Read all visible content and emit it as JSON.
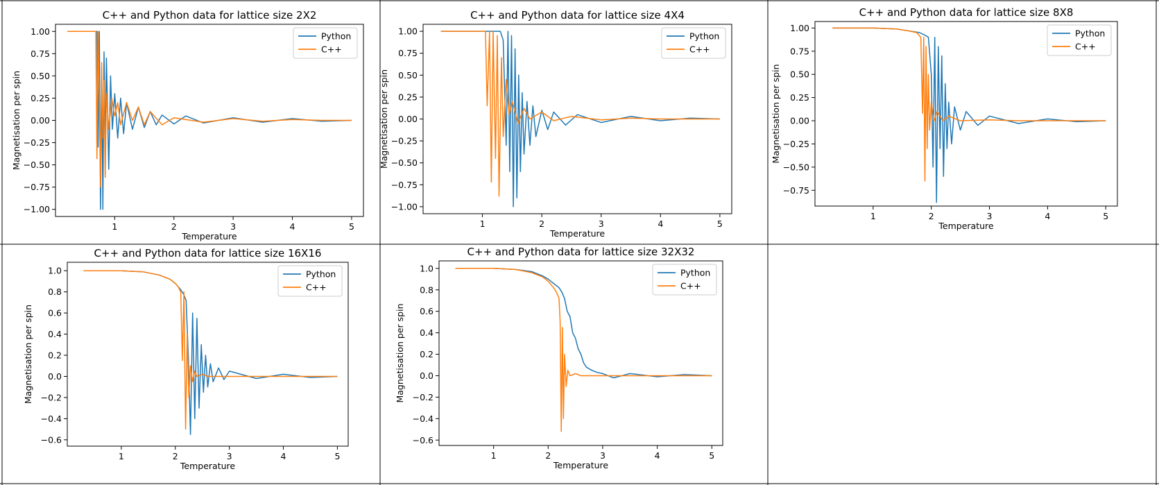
{
  "colors": {
    "python": "#1f77b4",
    "cpp": "#ff7f0e",
    "frame": "#000000",
    "grid_line": "#000000"
  },
  "chart_data": [
    {
      "type": "line",
      "title": "C++ and Python data for lattice size 2X2",
      "xlabel": "Temperature",
      "ylabel": "Magnetisation per spin",
      "xlim": [
        0.0,
        5.2
      ],
      "ylim": [
        -1.08,
        1.08
      ],
      "xticks": [
        1,
        2,
        3,
        4,
        5
      ],
      "yticks": [
        -1.0,
        -0.75,
        -0.5,
        -0.25,
        0.0,
        0.25,
        0.5,
        0.75,
        1.0
      ],
      "ytick_labels": [
        "−1.00",
        "−0.75",
        "−0.50",
        "−0.25",
        "0.00",
        "0.25",
        "0.50",
        "0.75",
        "1.00"
      ],
      "legend_position": "top-right",
      "series": [
        {
          "name": "Python",
          "x": [
            0.2,
            0.6,
            0.7,
            0.72,
            0.74,
            0.76,
            0.78,
            0.8,
            0.82,
            0.84,
            0.86,
            0.88,
            0.9,
            0.93,
            0.96,
            1.0,
            1.05,
            1.1,
            1.15,
            1.2,
            1.3,
            1.4,
            1.5,
            1.6,
            1.7,
            1.8,
            2.0,
            2.2,
            2.5,
            3.0,
            3.5,
            4.0,
            4.5,
            5.0
          ],
          "y": [
            1.0,
            1.0,
            1.0,
            -0.3,
            1.0,
            -1.0,
            0.6,
            -1.0,
            0.77,
            -0.4,
            0.7,
            0.1,
            -0.55,
            0.5,
            -0.1,
            0.3,
            -0.2,
            0.25,
            -0.15,
            0.2,
            -0.1,
            0.15,
            -0.08,
            0.1,
            -0.05,
            0.06,
            -0.04,
            0.05,
            -0.03,
            0.03,
            -0.02,
            0.02,
            -0.01,
            0.0
          ]
        },
        {
          "name": "C++",
          "x": [
            0.2,
            0.6,
            0.68,
            0.7,
            0.72,
            0.74,
            0.76,
            0.78,
            0.8,
            0.82,
            0.84,
            0.86,
            0.88,
            0.9,
            0.95,
            1.0,
            1.05,
            1.1,
            1.2,
            1.3,
            1.4,
            1.5,
            1.6,
            1.8,
            2.0,
            2.5,
            3.0,
            3.5,
            4.0,
            4.5,
            5.0
          ],
          "y": [
            1.0,
            1.0,
            1.0,
            -0.43,
            1.0,
            0.2,
            -0.75,
            0.65,
            -0.2,
            0.45,
            -0.64,
            0.3,
            0.1,
            -0.1,
            0.25,
            0.05,
            0.2,
            -0.05,
            0.2,
            0.0,
            0.15,
            -0.05,
            0.1,
            -0.05,
            0.03,
            -0.02,
            0.02,
            -0.01,
            0.01,
            0.0,
            0.0
          ]
        }
      ]
    },
    {
      "type": "line",
      "title": "C++ and Python data for lattice size 4X4",
      "xlabel": "Temperature",
      "ylabel": "Magnetisation per spin",
      "xlim": [
        0.0,
        5.2
      ],
      "ylim": [
        -1.08,
        1.08
      ],
      "xticks": [
        1,
        2,
        3,
        4,
        5
      ],
      "yticks": [
        -1.0,
        -0.75,
        -0.5,
        -0.25,
        0.0,
        0.25,
        0.5,
        0.75,
        1.0
      ],
      "ytick_labels": [
        "−1.00",
        "−0.75",
        "−0.50",
        "−0.25",
        "0.00",
        "0.25",
        "0.50",
        "0.75",
        "1.00"
      ],
      "legend_position": "top-right",
      "series": [
        {
          "name": "Python",
          "x": [
            0.3,
            1.0,
            1.3,
            1.35,
            1.4,
            1.43,
            1.46,
            1.49,
            1.52,
            1.55,
            1.58,
            1.61,
            1.64,
            1.67,
            1.7,
            1.75,
            1.8,
            1.85,
            1.9,
            2.0,
            2.1,
            2.2,
            2.4,
            2.6,
            3.0,
            3.5,
            4.0,
            4.5,
            5.0
          ],
          "y": [
            1.0,
            1.0,
            1.0,
            0.9,
            -0.3,
            1.0,
            -0.6,
            0.95,
            -1.0,
            0.8,
            -0.9,
            0.5,
            -0.6,
            0.3,
            -0.4,
            0.2,
            -0.3,
            0.15,
            -0.2,
            0.1,
            -0.12,
            0.08,
            -0.07,
            0.05,
            -0.04,
            0.03,
            -0.02,
            0.01,
            0.0
          ]
        },
        {
          "name": "C++",
          "x": [
            0.3,
            1.0,
            1.05,
            1.08,
            1.12,
            1.15,
            1.18,
            1.22,
            1.25,
            1.28,
            1.32,
            1.35,
            1.4,
            1.45,
            1.5,
            1.6,
            1.7,
            1.8,
            2.0,
            2.2,
            2.5,
            3.0,
            3.5,
            4.0,
            4.5,
            5.0
          ],
          "y": [
            1.0,
            1.0,
            1.0,
            0.15,
            1.0,
            -0.72,
            1.0,
            -0.45,
            0.95,
            -0.88,
            0.7,
            -0.2,
            0.45,
            0.05,
            0.2,
            -0.05,
            0.12,
            0.0,
            0.08,
            -0.02,
            0.03,
            -0.01,
            0.01,
            0.0,
            0.0,
            0.0
          ]
        }
      ]
    },
    {
      "type": "line",
      "title": "C++ and Python data for lattice size 8X8",
      "xlabel": "Temperature",
      "ylabel": "Magnetisation per spin",
      "xlim": [
        0.0,
        5.2
      ],
      "ylim": [
        -0.92,
        1.07
      ],
      "xticks": [
        1,
        2,
        3,
        4,
        5
      ],
      "yticks": [
        -0.75,
        -0.5,
        -0.25,
        0.0,
        0.25,
        0.5,
        0.75,
        1.0
      ],
      "ytick_labels": [
        "−0.75",
        "−0.50",
        "−0.25",
        "0.00",
        "0.25",
        "0.50",
        "0.75",
        "1.00"
      ],
      "legend_position": "top-right",
      "series": [
        {
          "name": "Python",
          "x": [
            0.3,
            1.0,
            1.4,
            1.6,
            1.8,
            1.9,
            1.95,
            2.0,
            2.03,
            2.06,
            2.09,
            2.12,
            2.15,
            2.18,
            2.21,
            2.24,
            2.27,
            2.3,
            2.35,
            2.4,
            2.5,
            2.6,
            2.8,
            3.0,
            3.5,
            4.0,
            4.5,
            5.0
          ],
          "y": [
            1.0,
            1.0,
            0.99,
            0.97,
            0.95,
            0.92,
            0.9,
            0.5,
            -0.5,
            0.9,
            -0.88,
            0.8,
            -0.3,
            0.7,
            -0.6,
            0.4,
            -0.3,
            0.2,
            -0.25,
            0.15,
            -0.1,
            0.1,
            -0.05,
            0.05,
            -0.03,
            0.02,
            -0.01,
            0.0
          ]
        },
        {
          "name": "C++",
          "x": [
            0.3,
            1.0,
            1.4,
            1.6,
            1.75,
            1.82,
            1.85,
            1.87,
            1.89,
            1.91,
            1.93,
            1.95,
            1.97,
            2.0,
            2.05,
            2.1,
            2.2,
            2.3,
            2.5,
            3.0,
            3.5,
            4.0,
            4.5,
            5.0
          ],
          "y": [
            1.0,
            1.0,
            0.99,
            0.97,
            0.95,
            0.9,
            0.08,
            0.9,
            -0.65,
            0.8,
            -0.3,
            0.5,
            -0.1,
            0.2,
            0.0,
            0.1,
            0.0,
            0.05,
            0.0,
            0.01,
            0.0,
            0.0,
            0.0,
            0.0
          ]
        }
      ]
    },
    {
      "type": "line",
      "title": "C++ and Python data for lattice size 16X16",
      "xlabel": "Temperature",
      "ylabel": "Magnetisation per spin",
      "xlim": [
        0.0,
        5.2
      ],
      "ylim": [
        -0.66,
        1.08
      ],
      "xticks": [
        1,
        2,
        3,
        4,
        5
      ],
      "yticks": [
        -0.6,
        -0.4,
        -0.2,
        0.0,
        0.2,
        0.4,
        0.6,
        0.8,
        1.0
      ],
      "ytick_labels": [
        "−0.6",
        "−0.4",
        "−0.2",
        "0.0",
        "0.2",
        "0.4",
        "0.6",
        "0.8",
        "1.0"
      ],
      "legend_position": "top-right",
      "series": [
        {
          "name": "Python",
          "x": [
            0.3,
            1.0,
            1.4,
            1.7,
            1.9,
            2.0,
            2.1,
            2.15,
            2.2,
            2.24,
            2.28,
            2.32,
            2.36,
            2.4,
            2.44,
            2.48,
            2.52,
            2.56,
            2.6,
            2.65,
            2.7,
            2.8,
            2.9,
            3.0,
            3.5,
            4.0,
            4.5,
            5.0
          ],
          "y": [
            1.0,
            1.0,
            0.99,
            0.96,
            0.92,
            0.88,
            0.82,
            0.78,
            0.72,
            0.2,
            -0.55,
            0.6,
            -0.4,
            0.55,
            -0.3,
            0.3,
            -0.15,
            0.2,
            -0.1,
            0.12,
            -0.05,
            0.08,
            -0.03,
            0.05,
            -0.02,
            0.02,
            -0.01,
            0.0
          ]
        },
        {
          "name": "C++",
          "x": [
            0.3,
            1.0,
            1.4,
            1.7,
            1.9,
            2.0,
            2.05,
            2.1,
            2.13,
            2.16,
            2.19,
            2.22,
            2.25,
            2.28,
            2.32,
            2.36,
            2.4,
            2.5,
            2.6,
            3.0,
            3.5,
            4.0,
            4.5,
            5.0
          ],
          "y": [
            1.0,
            1.0,
            0.99,
            0.96,
            0.92,
            0.88,
            0.85,
            0.8,
            0.15,
            0.8,
            -0.5,
            0.4,
            -0.2,
            0.1,
            -0.05,
            0.05,
            0.0,
            0.02,
            0.0,
            0.0,
            0.0,
            0.0,
            0.0,
            0.0
          ]
        }
      ]
    },
    {
      "type": "line",
      "title": "C++ and Python data for lattice size 32X32",
      "xlabel": "Temperature",
      "ylabel": "Magnetisation per spin",
      "xlim": [
        0.0,
        5.2
      ],
      "ylim": [
        -0.65,
        1.07
      ],
      "xticks": [
        1,
        2,
        3,
        4,
        5
      ],
      "yticks": [
        -0.6,
        -0.4,
        -0.2,
        0.0,
        0.2,
        0.4,
        0.6,
        0.8,
        1.0
      ],
      "ytick_labels": [
        "−0.6",
        "−0.4",
        "−0.2",
        "0.0",
        "0.2",
        "0.4",
        "0.6",
        "0.8",
        "1.0"
      ],
      "legend_position": "top-right",
      "series": [
        {
          "name": "Python",
          "x": [
            0.3,
            1.0,
            1.4,
            1.7,
            1.9,
            2.0,
            2.1,
            2.2,
            2.25,
            2.3,
            2.35,
            2.4,
            2.45,
            2.5,
            2.55,
            2.6,
            2.65,
            2.7,
            2.8,
            2.9,
            3.0,
            3.2,
            3.5,
            4.0,
            4.5,
            5.0
          ],
          "y": [
            1.0,
            1.0,
            0.99,
            0.97,
            0.93,
            0.9,
            0.86,
            0.82,
            0.78,
            0.72,
            0.6,
            0.55,
            0.4,
            0.35,
            0.25,
            0.2,
            0.12,
            0.08,
            0.05,
            0.03,
            0.02,
            -0.02,
            0.02,
            -0.01,
            0.01,
            0.0
          ]
        },
        {
          "name": "C++",
          "x": [
            0.3,
            1.0,
            1.4,
            1.7,
            1.9,
            2.0,
            2.1,
            2.15,
            2.2,
            2.22,
            2.24,
            2.26,
            2.28,
            2.3,
            2.33,
            2.36,
            2.4,
            2.5,
            2.6,
            3.0,
            3.5,
            4.0,
            4.5,
            5.0
          ],
          "y": [
            1.0,
            1.0,
            0.99,
            0.96,
            0.92,
            0.88,
            0.82,
            0.78,
            0.72,
            0.5,
            -0.52,
            0.45,
            -0.4,
            0.2,
            -0.1,
            0.05,
            0.0,
            0.02,
            0.0,
            0.0,
            0.0,
            0.0,
            0.0,
            0.0
          ]
        }
      ]
    }
  ]
}
